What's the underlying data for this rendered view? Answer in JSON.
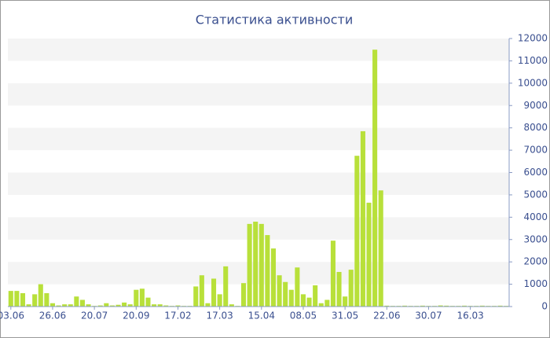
{
  "chart_data": {
    "type": "bar",
    "title": "Статистика активности",
    "categories": [
      "03.06",
      null,
      null,
      null,
      null,
      null,
      null,
      "26.06",
      null,
      null,
      null,
      null,
      null,
      null,
      "20.07",
      null,
      null,
      null,
      null,
      null,
      null,
      "20.09",
      null,
      null,
      null,
      null,
      null,
      null,
      "17.02",
      null,
      null,
      null,
      null,
      null,
      null,
      "17.03",
      null,
      null,
      null,
      null,
      null,
      null,
      "15.04",
      null,
      null,
      null,
      null,
      null,
      null,
      "08.05",
      null,
      null,
      null,
      null,
      null,
      null,
      "31.05",
      null,
      null,
      null,
      null,
      null,
      null,
      "22.06",
      null,
      null,
      null,
      null,
      null,
      null,
      "30.07",
      null,
      null,
      null,
      null,
      null,
      null,
      "16.03",
      null,
      null,
      null,
      null,
      null,
      null
    ],
    "values": [
      700,
      700,
      600,
      100,
      550,
      1000,
      600,
      150,
      50,
      100,
      100,
      450,
      300,
      100,
      30,
      50,
      150,
      50,
      80,
      180,
      100,
      750,
      800,
      400,
      100,
      100,
      50,
      30,
      50,
      30,
      30,
      900,
      1400,
      150,
      1250,
      550,
      1800,
      100,
      30,
      1050,
      3700,
      3800,
      3700,
      3200,
      2600,
      1400,
      1100,
      750,
      1750,
      550,
      400,
      950,
      150,
      300,
      2950,
      1550,
      450,
      1650,
      6750,
      7850,
      4650,
      11500,
      5200,
      40,
      30,
      30,
      40,
      30,
      30,
      40,
      30,
      30,
      50,
      40,
      30,
      30,
      40,
      30,
      30,
      40,
      30,
      30,
      40,
      30
    ],
    "color": "#b8e03a",
    "ylim": [
      0,
      12000
    ],
    "yticks": [
      0,
      1000,
      2000,
      3000,
      4000,
      5000,
      6000,
      7000,
      8000,
      9000,
      10000,
      11000,
      12000
    ],
    "grid": true
  }
}
